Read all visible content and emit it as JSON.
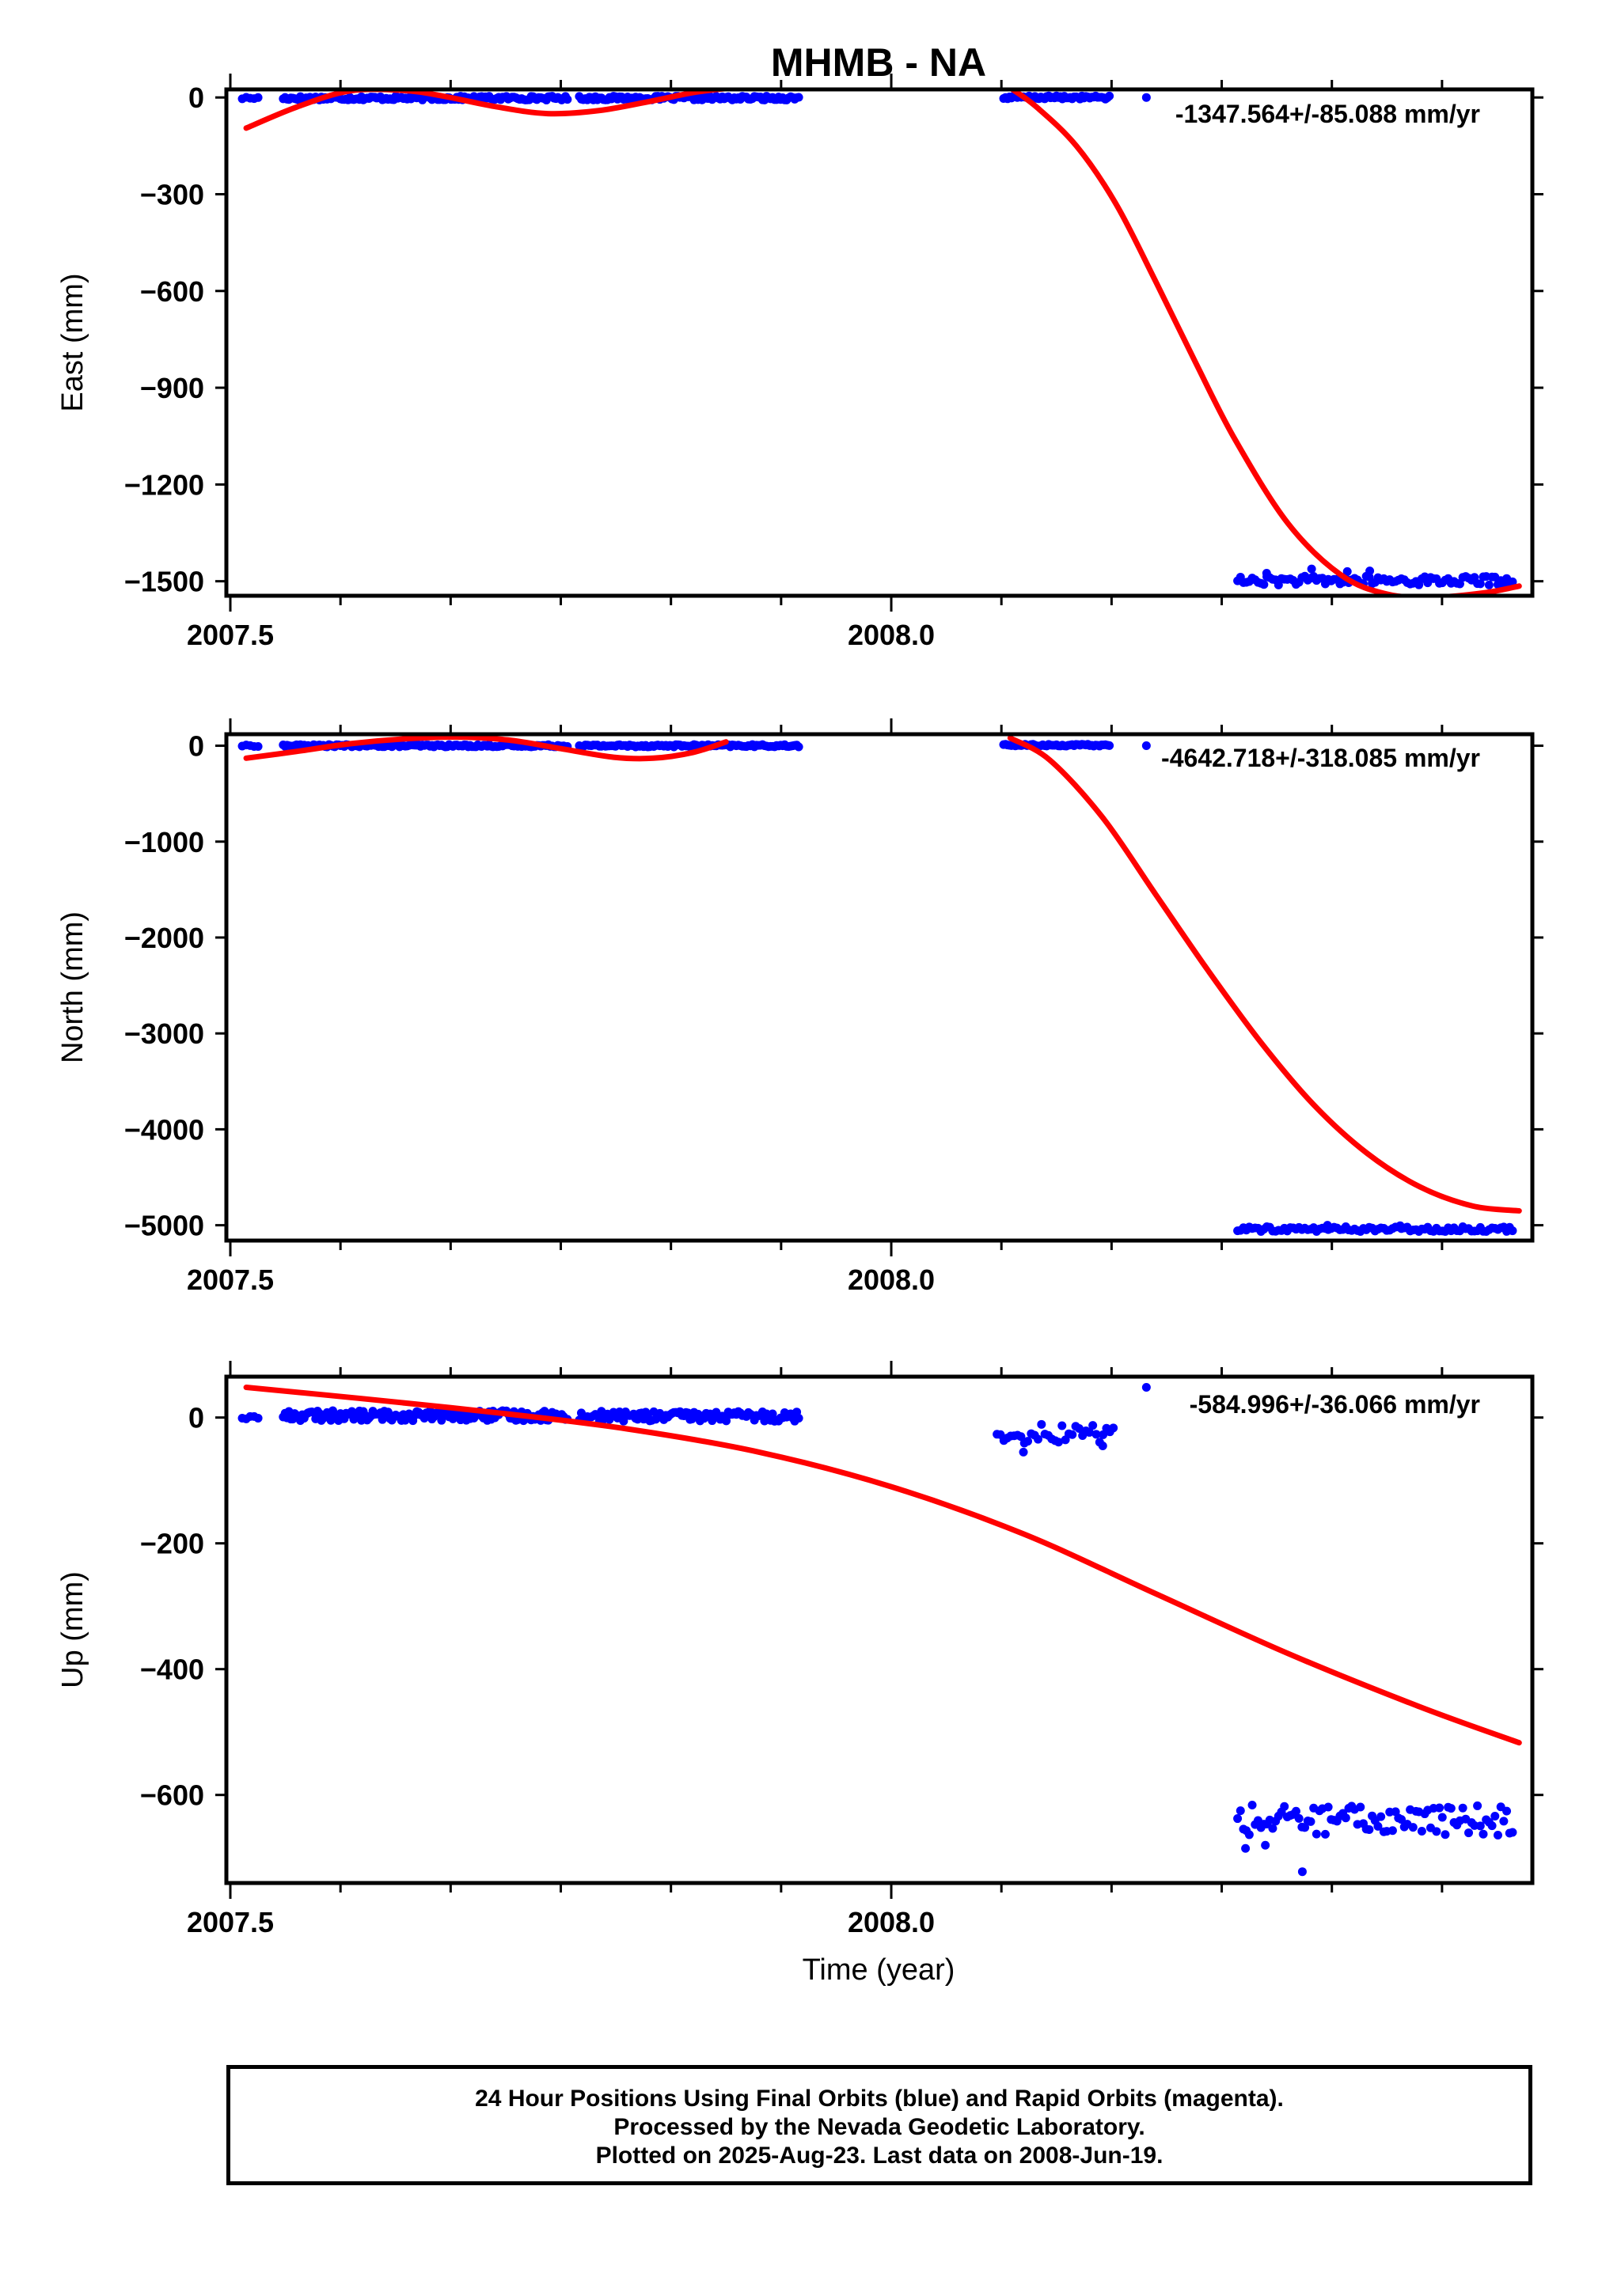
{
  "chart_data": {
    "type": "scatter",
    "title": "MHMB - NA",
    "xlabel": "Time (year)",
    "x_tick_labels": [
      "2007.5",
      "2008.0"
    ],
    "colors": {
      "final_orbits": "#0000ff",
      "model_fit": "#ff0000",
      "frame": "#000000"
    },
    "panels": [
      {
        "id": "east",
        "ylabel": "East (mm)",
        "rate_label": "-1347.564+/-85.088 mm/yr",
        "xlim": [
          2007.497,
          2008.485
        ],
        "ylim": [
          -1545,
          25
        ],
        "yticks": [
          0,
          -300,
          -600,
          -900,
          -1200,
          -1500
        ],
        "ytick_labels": [
          "0",
          "−300",
          "−600",
          "−900",
          "−1200",
          "−1500"
        ],
        "segments": [
          {
            "start": 2007.509,
            "end": 2007.521,
            "mean": -2,
            "spread": 4,
            "n": 5
          },
          {
            "start": 2007.54,
            "end": 2007.755,
            "mean": -2,
            "spread": 6,
            "n": 150
          },
          {
            "start": 2007.764,
            "end": 2007.93,
            "mean": -2,
            "spread": 6,
            "n": 110
          },
          {
            "start": 2008.085,
            "end": 2008.165,
            "mean": 0,
            "spread": 5,
            "n": 55
          },
          {
            "start": 2008.262,
            "end": 2008.47,
            "mean": -1498,
            "spread": 14,
            "n": 95
          }
        ],
        "extra_points": [
          {
            "x": 2008.193,
            "y": 0
          },
          {
            "x": 2008.284,
            "y": -1475
          },
          {
            "x": 2008.318,
            "y": -1462
          },
          {
            "x": 2008.345,
            "y": -1470
          },
          {
            "x": 2008.362,
            "y": -1468
          }
        ],
        "fit_segments": [
          [
            [
              2007.512,
              -95
            ],
            [
              2007.55,
              -30
            ],
            [
              2007.59,
              20
            ],
            [
              2007.63,
              22
            ],
            [
              2007.66,
              5
            ],
            [
              2007.7,
              -28
            ],
            [
              2007.74,
              -50
            ],
            [
              2007.78,
              -40
            ],
            [
              2007.82,
              -10
            ],
            [
              2007.85,
              15
            ],
            [
              2007.875,
              28
            ]
          ],
          [
            [
              2008.09,
              30
            ],
            [
              2008.11,
              -30
            ],
            [
              2008.14,
              -150
            ],
            [
              2008.17,
              -330
            ],
            [
              2008.2,
              -570
            ],
            [
              2008.23,
              -820
            ],
            [
              2008.26,
              -1060
            ],
            [
              2008.3,
              -1320
            ],
            [
              2008.34,
              -1480
            ],
            [
              2008.375,
              -1540
            ],
            [
              2008.41,
              -1550
            ],
            [
              2008.45,
              -1535
            ],
            [
              2008.475,
              -1515
            ]
          ]
        ]
      },
      {
        "id": "north",
        "ylabel": "North (mm)",
        "rate_label": "-4642.718+/-318.085 mm/yr",
        "xlim": [
          2007.497,
          2008.485
        ],
        "ylim": [
          -5160,
          120
        ],
        "yticks": [
          0,
          -1000,
          -2000,
          -3000,
          -4000,
          -5000
        ],
        "ytick_labels": [
          "0",
          "−1000",
          "−2000",
          "−3000",
          "−4000",
          "−5000"
        ],
        "segments": [
          {
            "start": 2007.509,
            "end": 2007.521,
            "mean": 0,
            "spread": 8,
            "n": 5
          },
          {
            "start": 2007.54,
            "end": 2007.755,
            "mean": 0,
            "spread": 12,
            "n": 150
          },
          {
            "start": 2007.764,
            "end": 2007.93,
            "mean": 0,
            "spread": 12,
            "n": 110
          },
          {
            "start": 2008.085,
            "end": 2008.165,
            "mean": 5,
            "spread": 10,
            "n": 55
          },
          {
            "start": 2008.262,
            "end": 2008.47,
            "mean": -5040,
            "spread": 25,
            "n": 95
          }
        ],
        "extra_points": [
          {
            "x": 2008.193,
            "y": 0
          },
          {
            "x": 2008.33,
            "y": -5000
          },
          {
            "x": 2008.385,
            "y": -5005
          }
        ],
        "fit_segments": [
          [
            [
              2007.512,
              -130
            ],
            [
              2007.55,
              -60
            ],
            [
              2007.59,
              20
            ],
            [
              2007.63,
              70
            ],
            [
              2007.67,
              90
            ],
            [
              2007.71,
              60
            ],
            [
              2007.75,
              -30
            ],
            [
              2007.79,
              -120
            ],
            [
              2007.82,
              -130
            ],
            [
              2007.85,
              -70
            ],
            [
              2007.875,
              40
            ]
          ],
          [
            [
              2008.09,
              80
            ],
            [
              2008.12,
              -150
            ],
            [
              2008.16,
              -750
            ],
            [
              2008.2,
              -1550
            ],
            [
              2008.24,
              -2350
            ],
            [
              2008.28,
              -3100
            ],
            [
              2008.32,
              -3750
            ],
            [
              2008.36,
              -4250
            ],
            [
              2008.4,
              -4600
            ],
            [
              2008.44,
              -4800
            ],
            [
              2008.475,
              -4850
            ]
          ]
        ]
      },
      {
        "id": "up",
        "ylabel": "Up (mm)",
        "rate_label": "-584.996+/-36.066 mm/yr",
        "xlim": [
          2007.497,
          2008.485
        ],
        "ylim": [
          -740,
          65
        ],
        "yticks": [
          0,
          -200,
          -400,
          -600
        ],
        "ytick_labels": [
          "0",
          "−200",
          "−400",
          "−600"
        ],
        "segments": [
          {
            "start": 2007.509,
            "end": 2007.521,
            "mean": 0,
            "spread": 3,
            "n": 5
          },
          {
            "start": 2007.54,
            "end": 2007.755,
            "mean": 3,
            "spread": 8,
            "n": 150
          },
          {
            "start": 2007.764,
            "end": 2007.93,
            "mean": 2,
            "spread": 8,
            "n": 110
          },
          {
            "start": 2008.08,
            "end": 2008.168,
            "mean": -25,
            "spread": 16,
            "n": 35
          },
          {
            "start": 2008.262,
            "end": 2008.47,
            "mean": -640,
            "spread": 24,
            "n": 95
          }
        ],
        "extra_points": [
          {
            "x": 2008.193,
            "y": 48
          },
          {
            "x": 2008.311,
            "y": -722
          },
          {
            "x": 2008.268,
            "y": -685
          },
          {
            "x": 2008.283,
            "y": -680
          },
          {
            "x": 2008.1,
            "y": -55
          },
          {
            "x": 2008.16,
            "y": -45
          }
        ],
        "fit_segments": [
          [
            [
              2007.512,
              48
            ],
            [
              2007.6,
              30
            ],
            [
              2007.7,
              8
            ],
            [
              2007.8,
              -18
            ],
            [
              2007.9,
              -55
            ],
            [
              2008.0,
              -110
            ],
            [
              2008.1,
              -185
            ],
            [
              2008.2,
              -280
            ],
            [
              2008.3,
              -375
            ],
            [
              2008.4,
              -460
            ],
            [
              2008.475,
              -517
            ]
          ]
        ]
      }
    ]
  },
  "footer": {
    "line1": "24 Hour Positions Using Final Orbits (blue) and Rapid Orbits (magenta).",
    "line2": "Processed by the Nevada Geodetic Laboratory.",
    "line3": "Plotted on 2025-Aug-23. Last data on 2008-Jun-19."
  }
}
